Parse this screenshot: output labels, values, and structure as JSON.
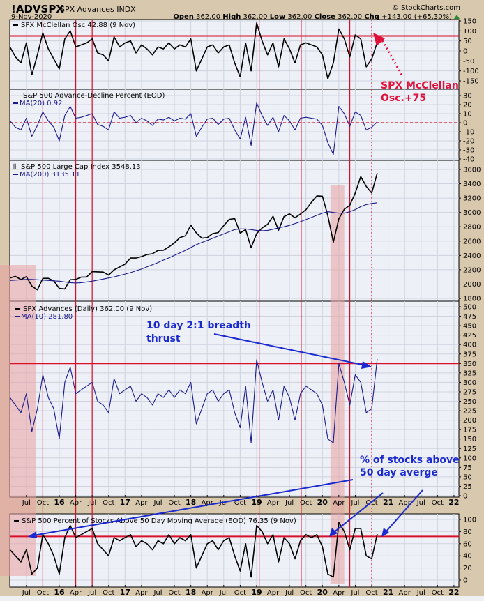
{
  "header": {
    "symbol": "!ADVSPX",
    "name": "SPX Advances INDX",
    "date": "9-Nov-2020",
    "copyright": "© StockCharts.com",
    "open_label": "Open",
    "open": "362.00",
    "high_label": "High",
    "high": "362.00",
    "low_label": "Low",
    "low": "362.00",
    "close_label": "Close",
    "close": "362.00",
    "chg_label": "Chg",
    "chg": "+143.00 (+65.30%)"
  },
  "legends": {
    "p1": "SPX McClellan Osc 42.88 (9 Nov)",
    "p2a": "S&P 500 Advance-Decline Percent (EOD)",
    "p2b": "MA(20) 0.92",
    "p3a": "S&P 500 Large Cap Index 3548.13",
    "p3b": "MA(200) 3135.11",
    "p4a": "SPX Advances (Daily) 362.00 (9 Nov)",
    "p4b": "MA(10) 281.80",
    "p5": "S&P 500 Percent of Stocks Above 50 Day Moving Average (EOD) 76.35 (9 Nov)"
  },
  "annotations": {
    "mcclellan_1": "SPX McClellan",
    "mcclellan_2": "Osc.+75",
    "thrust_1": "10 day 2:1 breadth",
    "thrust_2": "thrust",
    "pct_1": "% of stocks above",
    "pct_2": "50 day averge"
  },
  "colors": {
    "background": "#d8c8ae",
    "plot": "#eef0f7",
    "grid": "#cfd3de",
    "red": "#d8102a",
    "navy": "#1a1a8c",
    "shade": "#e8a0a0",
    "blue": "#1a2ad0"
  },
  "chart_data": {
    "type": "line",
    "x_start": "2015-04",
    "x_step": "month",
    "x_ticks": [
      {
        "label": "Jul",
        "date": "2015-07-01"
      },
      {
        "label": "Oct",
        "date": "2015-10-01"
      },
      {
        "label": "16",
        "date": "2016-01-01",
        "bold": true
      },
      {
        "label": "Apr",
        "date": "2016-04-01"
      },
      {
        "label": "Jul",
        "date": "2016-07-01"
      },
      {
        "label": "Oct",
        "date": "2016-10-01"
      },
      {
        "label": "17",
        "date": "2017-01-01",
        "bold": true
      },
      {
        "label": "Apr",
        "date": "2017-04-01"
      },
      {
        "label": "Jul",
        "date": "2017-07-01"
      },
      {
        "label": "Oct",
        "date": "2017-10-01"
      },
      {
        "label": "18",
        "date": "2018-01-01",
        "bold": true
      },
      {
        "label": "Apr",
        "date": "2018-04-01"
      },
      {
        "label": "Jul",
        "date": "2018-07-01"
      },
      {
        "label": "Oct",
        "date": "2018-10-01"
      },
      {
        "label": "19",
        "date": "2019-01-01",
        "bold": true
      },
      {
        "label": "Apr",
        "date": "2019-04-01"
      },
      {
        "label": "Jul",
        "date": "2019-07-01"
      },
      {
        "label": "Oct",
        "date": "2019-10-01"
      },
      {
        "label": "20",
        "date": "2020-01-01",
        "bold": true
      },
      {
        "label": "Apr",
        "date": "2020-04-01"
      },
      {
        "label": "Jul",
        "date": "2020-07-01"
      },
      {
        "label": "Oct",
        "date": "2020-10-01"
      },
      {
        "label": "21",
        "date": "2021-01-01",
        "bold": true
      },
      {
        "label": "Apr",
        "date": "2021-04-01"
      },
      {
        "label": "Jul",
        "date": "2021-07-01"
      },
      {
        "label": "Oct",
        "date": "2021-10-01"
      },
      {
        "label": "22",
        "date": "2022-01-01",
        "bold": true
      }
    ],
    "vertical_markers": [
      "2015-10-01",
      "2016-04-01",
      "2016-07-01",
      "2019-01-15",
      "2019-09-05",
      "2020-06-01"
    ],
    "dotted_marker": "2020-10-01",
    "shaded_ranges": [
      [
        "2015-02-01",
        "2015-08-25"
      ],
      [
        "2020-02-15",
        "2020-05-01"
      ]
    ],
    "panels": [
      {
        "id": "p1",
        "ylim": [
          -150,
          150
        ],
        "ticks": [
          150,
          100,
          50,
          0,
          -50,
          -100,
          -150
        ],
        "hline": 75,
        "hline_style": "solid",
        "series": [
          {
            "name": "SPX McClellan Osc",
            "color": "#000000",
            "values": [
              20,
              -30,
              -60,
              40,
              -120,
              -20,
              90,
              10,
              -40,
              -90,
              60,
              100,
              20,
              30,
              40,
              60,
              -10,
              -20,
              -50,
              70,
              20,
              40,
              50,
              -10,
              30,
              10,
              -20,
              20,
              10,
              40,
              10,
              30,
              20,
              60,
              -100,
              -40,
              20,
              30,
              -10,
              20,
              30,
              -60,
              -130,
              40,
              -100,
              140,
              50,
              -20,
              40,
              -80,
              60,
              10,
              -60,
              30,
              40,
              30,
              20,
              -20,
              -140,
              -60,
              110,
              60,
              -30,
              80,
              60,
              -80,
              -40,
              43
            ]
          }
        ]
      },
      {
        "id": "p2",
        "ylim": [
          -40,
          30
        ],
        "ticks": [
          30,
          20,
          10,
          0,
          -10,
          -20,
          -30,
          -40
        ],
        "hline": 0,
        "hline_style": "dashed",
        "series": [
          {
            "name": "MA(20)",
            "color": "#1a1a8c",
            "values": [
              2,
              -5,
              -8,
              5,
              -15,
              -3,
              12,
              2,
              -5,
              -20,
              8,
              18,
              5,
              6,
              8,
              10,
              -2,
              -4,
              -8,
              12,
              5,
              6,
              8,
              0,
              5,
              2,
              -3,
              4,
              3,
              6,
              2,
              5,
              4,
              10,
              -15,
              -5,
              4,
              5,
              -2,
              4,
              5,
              -8,
              -18,
              6,
              -25,
              22,
              8,
              -3,
              6,
              -10,
              8,
              2,
              -8,
              5,
              6,
              5,
              4,
              -3,
              -22,
              -35,
              18,
              10,
              -4,
              12,
              8,
              -8,
              -5,
              1
            ]
          }
        ]
      },
      {
        "id": "p3",
        "ylim": [
          1800,
          3600
        ],
        "ticks": [
          3600,
          3400,
          3200,
          3000,
          2800,
          2600,
          2400,
          2200,
          2000,
          1800
        ],
        "series": [
          {
            "name": "S&P 500 Large Cap Index",
            "color": "#000000",
            "values": [
              2085,
              2107,
              2063,
              2104,
              1972,
              1920,
              2079,
              2080,
              2044,
              1940,
              1932,
              2060,
              2065,
              2097,
              2099,
              2174,
              2171,
              2168,
              2126,
              2199,
              2239,
              2279,
              2364,
              2363,
              2384,
              2412,
              2423,
              2470,
              2472,
              2519,
              2575,
              2648,
              2674,
              2824,
              2714,
              2641,
              2648,
              2705,
              2718,
              2816,
              2902,
              2914,
              2712,
              2760,
              2507,
              2704,
              2784,
              2834,
              2946,
              2752,
              2942,
              2980,
              2926,
              2977,
              3038,
              3141,
              3231,
              3226,
              2954,
              2585,
              2912,
              3044,
              3100,
              3271,
              3500,
              3363,
              3270,
              3548
            ]
          },
          {
            "name": "MA(200)",
            "color": "#1a1a8c",
            "values": [
              2050,
              2055,
              2060,
              2065,
              2065,
              2060,
              2055,
              2050,
              2045,
              2040,
              2030,
              2020,
              2015,
              2020,
              2030,
              2040,
              2055,
              2070,
              2085,
              2100,
              2120,
              2140,
              2160,
              2185,
              2210,
              2240,
              2270,
              2300,
              2335,
              2365,
              2400,
              2435,
              2470,
              2510,
              2550,
              2580,
              2610,
              2640,
              2670,
              2700,
              2730,
              2760,
              2770,
              2770,
              2760,
              2750,
              2745,
              2750,
              2765,
              2785,
              2800,
              2820,
              2845,
              2870,
              2900,
              2930,
              2960,
              2990,
              3010,
              3000,
              2990,
              2990,
              3010,
              3040,
              3080,
              3110,
              3125,
              3135
            ]
          }
        ]
      },
      {
        "id": "p4",
        "ylim": [
          0,
          500
        ],
        "ticks": [
          500,
          475,
          450,
          425,
          400,
          375,
          350,
          325,
          300,
          275,
          250,
          225,
          200,
          175,
          150,
          125,
          100,
          75,
          50,
          25,
          0
        ],
        "hline": 350,
        "hline_style": "solid",
        "series": [
          {
            "name": "SPX Advances",
            "color": "#1a1a8c",
            "values": [
              260,
              240,
              220,
              270,
              170,
              230,
              320,
              260,
              230,
              150,
              300,
              340,
              270,
              280,
              290,
              300,
              250,
              240,
              220,
              310,
              270,
              280,
              290,
              250,
              270,
              260,
              240,
              270,
              260,
              280,
              260,
              280,
              270,
              300,
              190,
              230,
              270,
              280,
              250,
              270,
              280,
              220,
              180,
              290,
              140,
              360,
              300,
              250,
              280,
              200,
              290,
              260,
              200,
              270,
              290,
              280,
              270,
              240,
              150,
              140,
              350,
              300,
              240,
              320,
              300,
              220,
              230,
              362
            ]
          }
        ]
      },
      {
        "id": "p5",
        "ylim": [
          0,
          100
        ],
        "ticks": [
          100,
          80,
          60,
          40,
          20,
          0
        ],
        "hline": 72,
        "hline_style": "solid",
        "series": [
          {
            "name": "% Above 50 DMA",
            "color": "#000000",
            "values": [
              50,
              40,
              30,
              50,
              10,
              20,
              75,
              60,
              40,
              10,
              70,
              90,
              70,
              75,
              80,
              85,
              60,
              50,
              40,
              70,
              65,
              70,
              75,
              55,
              65,
              60,
              50,
              65,
              60,
              75,
              60,
              70,
              65,
              75,
              20,
              40,
              60,
              65,
              50,
              65,
              70,
              40,
              15,
              60,
              5,
              90,
              80,
              60,
              75,
              30,
              70,
              60,
              35,
              65,
              75,
              70,
              75,
              55,
              10,
              5,
              95,
              80,
              50,
              85,
              85,
              40,
              35,
              76
            ]
          }
        ]
      }
    ]
  }
}
